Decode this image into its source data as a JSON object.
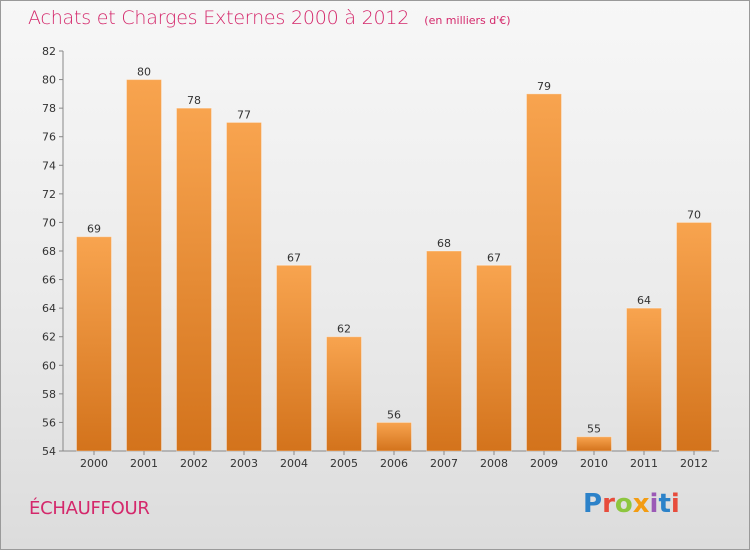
{
  "header": {
    "title": "Achats et Charges Externes 2000 à 2012",
    "subtitle": "(en milliers d'€)"
  },
  "location": "ÉCHAUFFOUR",
  "logo": {
    "text": "Proxiti",
    "letter_colors": [
      "#2c82c9",
      "#e74c3c",
      "#8dc63f",
      "#f39c12",
      "#9b59b6",
      "#2c82c9",
      "#e74c3c"
    ]
  },
  "colors": {
    "bar_top": "#f8a44f",
    "bar_bottom": "#d3731c",
    "accent": "#d4286b"
  },
  "chart_data": {
    "type": "bar",
    "categories": [
      "2000",
      "2001",
      "2002",
      "2003",
      "2004",
      "2005",
      "2006",
      "2007",
      "2008",
      "2009",
      "2010",
      "2011",
      "2012"
    ],
    "values": [
      69,
      80,
      78,
      77,
      67,
      62,
      56,
      68,
      67,
      79,
      55,
      64,
      70
    ],
    "title": "Achats et Charges Externes 2000 à 2012",
    "xlabel": "",
    "ylabel": "",
    "ylim": [
      54,
      82
    ],
    "yticks": [
      54,
      56,
      58,
      60,
      62,
      64,
      66,
      68,
      70,
      72,
      74,
      76,
      78,
      80,
      82
    ],
    "grid": false,
    "legend": "none"
  }
}
